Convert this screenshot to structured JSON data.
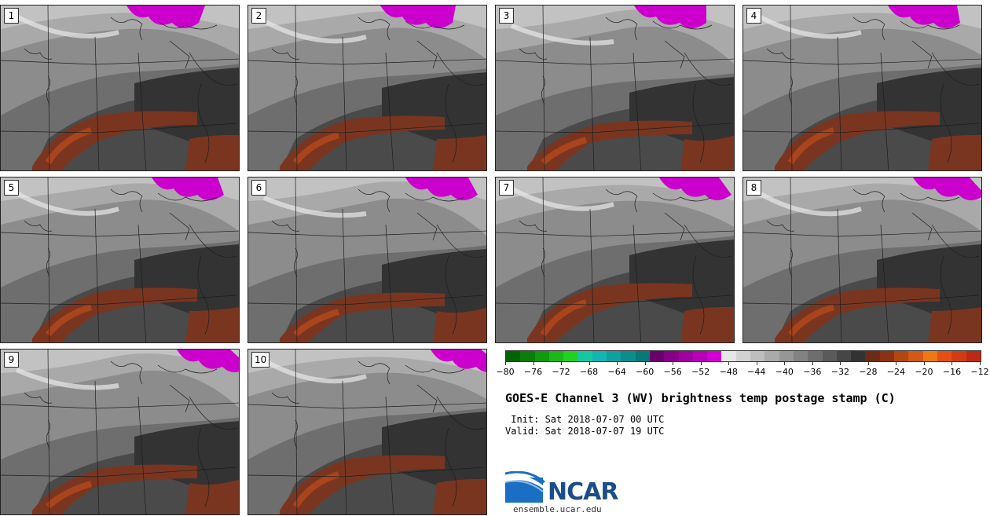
{
  "panels": [
    {
      "label": "1",
      "variant": 0
    },
    {
      "label": "2",
      "variant": 1
    },
    {
      "label": "3",
      "variant": 2
    },
    {
      "label": "4",
      "variant": 3
    },
    {
      "label": "5",
      "variant": 4
    },
    {
      "label": "6",
      "variant": 5
    },
    {
      "label": "7",
      "variant": 6
    },
    {
      "label": "8",
      "variant": 7
    },
    {
      "label": "9",
      "variant": 8
    },
    {
      "label": "10",
      "variant": 9
    }
  ],
  "colorbar": {
    "colors": [
      "#006400",
      "#0a7d0a",
      "#109a10",
      "#1ab81a",
      "#22d022",
      "#14c8a0",
      "#12b4b4",
      "#10a0a0",
      "#0c8c8c",
      "#087878",
      "#6a006a",
      "#880088",
      "#a000a0",
      "#b800b8",
      "#d200d2",
      "#e6e6e6",
      "#d2d2d2",
      "#bebebe",
      "#aaaaaa",
      "#969696",
      "#828282",
      "#6e6e6e",
      "#5a5a5a",
      "#464646",
      "#323232",
      "#6e2a14",
      "#8c3214",
      "#b44614",
      "#d25a14",
      "#f07814",
      "#e65014",
      "#d23c14",
      "#be2814"
    ],
    "ticks": [
      "−80",
      "−76",
      "−72",
      "−68",
      "−64",
      "−60",
      "−56",
      "−52",
      "−48",
      "−44",
      "−40",
      "−36",
      "−32",
      "−28",
      "−24",
      "−20",
      "−16",
      "−12"
    ]
  },
  "title": "GOES-E Channel 3 (WV) brightness temp postage stamp (C)",
  "init_line": " Init: Sat 2018-07-07 00 UTC",
  "valid_line": "Valid: Sat 2018-07-07 19 UTC",
  "logo": {
    "text": "NCAR",
    "url": "ensemble.ucar.edu",
    "color": "#1a4d8c"
  }
}
